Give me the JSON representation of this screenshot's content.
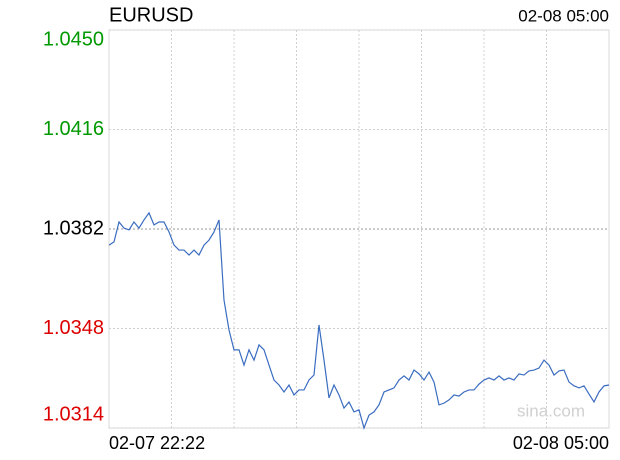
{
  "chart_data": {
    "type": "line",
    "title": "EURUSD",
    "timestamp": "02-08 05:00",
    "x_axis_labels": [
      "02-07 22:22",
      "02-08 05:00"
    ],
    "watermark": "sina.com",
    "series": [
      {
        "name": "EURUSD",
        "color": "#3a6cc0",
        "values": [
          1.03765,
          1.03776,
          1.03844,
          1.03823,
          1.03817,
          1.03844,
          1.03823,
          1.03851,
          1.03875,
          1.03834,
          1.03844,
          1.03844,
          1.0381,
          1.03765,
          1.03748,
          1.03748,
          1.03731,
          1.03748,
          1.03731,
          1.03765,
          1.03782,
          1.0381,
          1.03851,
          1.03577,
          1.03475,
          1.03407,
          1.03407,
          1.03355,
          1.03407,
          1.03372,
          1.03424,
          1.03407,
          1.03355,
          1.03304,
          1.03287,
          1.03263,
          1.03287,
          1.03253,
          1.0327,
          1.0327,
          1.03304,
          1.03321,
          1.03492,
          1.03372,
          1.03243,
          1.03287,
          1.03253,
          1.03208,
          1.03229,
          1.03195,
          1.03202,
          1.0314,
          1.03184,
          1.03195,
          1.03219,
          1.03263,
          1.0327,
          1.03277,
          1.03304,
          1.03318,
          1.03304,
          1.03338,
          1.03325,
          1.03304,
          1.03331,
          1.03297,
          1.03219,
          1.03225,
          1.03236,
          1.03253,
          1.03249,
          1.03263,
          1.0327,
          1.0327,
          1.0329,
          1.03304,
          1.03311,
          1.03304,
          1.03318,
          1.03304,
          1.03311,
          1.03304,
          1.03325,
          1.03321,
          1.03335,
          1.03338,
          1.03345,
          1.03372,
          1.03355,
          1.03321,
          1.03335,
          1.03338,
          1.03297,
          1.03284,
          1.03277,
          1.03284,
          1.03256,
          1.03229,
          1.03263,
          1.03284,
          1.03287
        ]
      }
    ],
    "ylim": [
      1.0314,
      1.045
    ],
    "yticks": [
      {
        "value": 1.045,
        "label": "1.0450"
      },
      {
        "value": 1.0416,
        "label": "1.0416"
      },
      {
        "value": 1.0382,
        "label": "1.0382"
      },
      {
        "value": 1.0348,
        "label": "1.0348"
      },
      {
        "value": 1.0314,
        "label": "1.0314"
      }
    ],
    "up_color": "#009900",
    "down_color": "#dd0000",
    "flat_color": "#000000",
    "grid": true,
    "x_grid_divisions": 8
  }
}
